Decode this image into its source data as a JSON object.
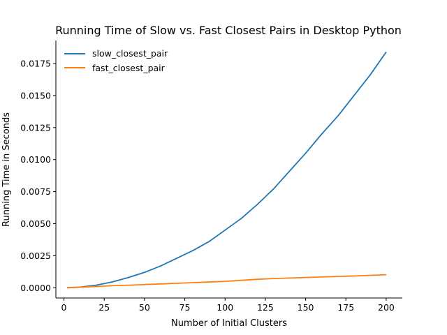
{
  "chart_data": {
    "type": "line",
    "title": "Running Time of Slow vs. Fast Closest Pairs in Desktop Python",
    "xlabel": "Number of Initial Clusters",
    "ylabel": "Running Time in Seconds",
    "xlim": [
      -5,
      210
    ],
    "ylim": [
      -0.0008,
      0.0193
    ],
    "xticks": [
      0,
      25,
      50,
      75,
      100,
      125,
      150,
      175,
      200
    ],
    "xtick_labels": [
      "0",
      "25",
      "50",
      "75",
      "100",
      "125",
      "150",
      "175",
      "200"
    ],
    "yticks": [
      0.0,
      0.0025,
      0.005,
      0.0075,
      0.01,
      0.0125,
      0.015,
      0.0175
    ],
    "ytick_labels": [
      "0.0000",
      "0.0025",
      "0.0050",
      "0.0075",
      "0.0100",
      "0.0125",
      "0.0150",
      "0.0175"
    ],
    "grid": false,
    "legend_position": "top-left",
    "x": [
      2,
      10,
      20,
      30,
      40,
      50,
      60,
      70,
      80,
      90,
      100,
      110,
      120,
      130,
      140,
      150,
      160,
      170,
      180,
      190,
      200
    ],
    "series": [
      {
        "name": "slow_closest_pair",
        "color": "#1f77b4",
        "values": [
          0.0,
          5e-05,
          0.0002,
          0.00045,
          0.0008,
          0.0012,
          0.0017,
          0.0023,
          0.0029,
          0.0036,
          0.0045,
          0.0054,
          0.0065,
          0.0077,
          0.0091,
          0.0105,
          0.012,
          0.0134,
          0.015,
          0.0166,
          0.0184
        ]
      },
      {
        "name": "fast_closest_pair",
        "color": "#ff7f0e",
        "values": [
          0.0,
          4e-05,
          0.0001,
          0.00016,
          0.0002,
          0.00025,
          0.0003,
          0.00035,
          0.0004,
          0.00045,
          0.0005,
          0.00058,
          0.00066,
          0.00072,
          0.00076,
          0.0008,
          0.00084,
          0.00088,
          0.00092,
          0.00097,
          0.00102
        ]
      }
    ]
  }
}
